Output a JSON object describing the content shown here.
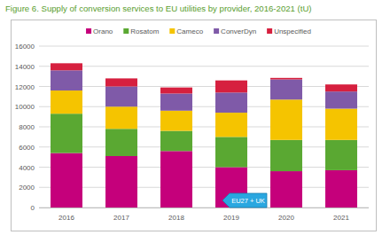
{
  "chart_data": {
    "type": "bar",
    "stacked": true,
    "title": "Figure 6. Supply of conversion services to EU utilities by provider, 2016-2021 (tU)",
    "annotation": "EU27 + UK",
    "categories": [
      "2016",
      "2017",
      "2018",
      "2019",
      "2020",
      "2021"
    ],
    "series": [
      {
        "name": "Orano",
        "color": "#c5007b",
        "values": [
          5400,
          5100,
          5600,
          4000,
          3600,
          3700
        ]
      },
      {
        "name": "Rosatom",
        "color": "#5aa832",
        "values": [
          3900,
          2700,
          2000,
          3000,
          3100,
          3000
        ]
      },
      {
        "name": "Cameco",
        "color": "#f5c400",
        "values": [
          2300,
          2200,
          2000,
          2400,
          4000,
          3100
        ]
      },
      {
        "name": "ConverDyn",
        "color": "#7f5aa8",
        "values": [
          2000,
          2000,
          1700,
          2000,
          2000,
          1700
        ]
      },
      {
        "name": "Unspecified",
        "color": "#d6203f",
        "values": [
          700,
          800,
          600,
          1200,
          150,
          700
        ]
      }
    ],
    "ylim": [
      0,
      16000
    ],
    "yticks": [
      0,
      2000,
      4000,
      6000,
      8000,
      10000,
      12000,
      14000,
      16000
    ],
    "grid": true,
    "legend": "top"
  }
}
